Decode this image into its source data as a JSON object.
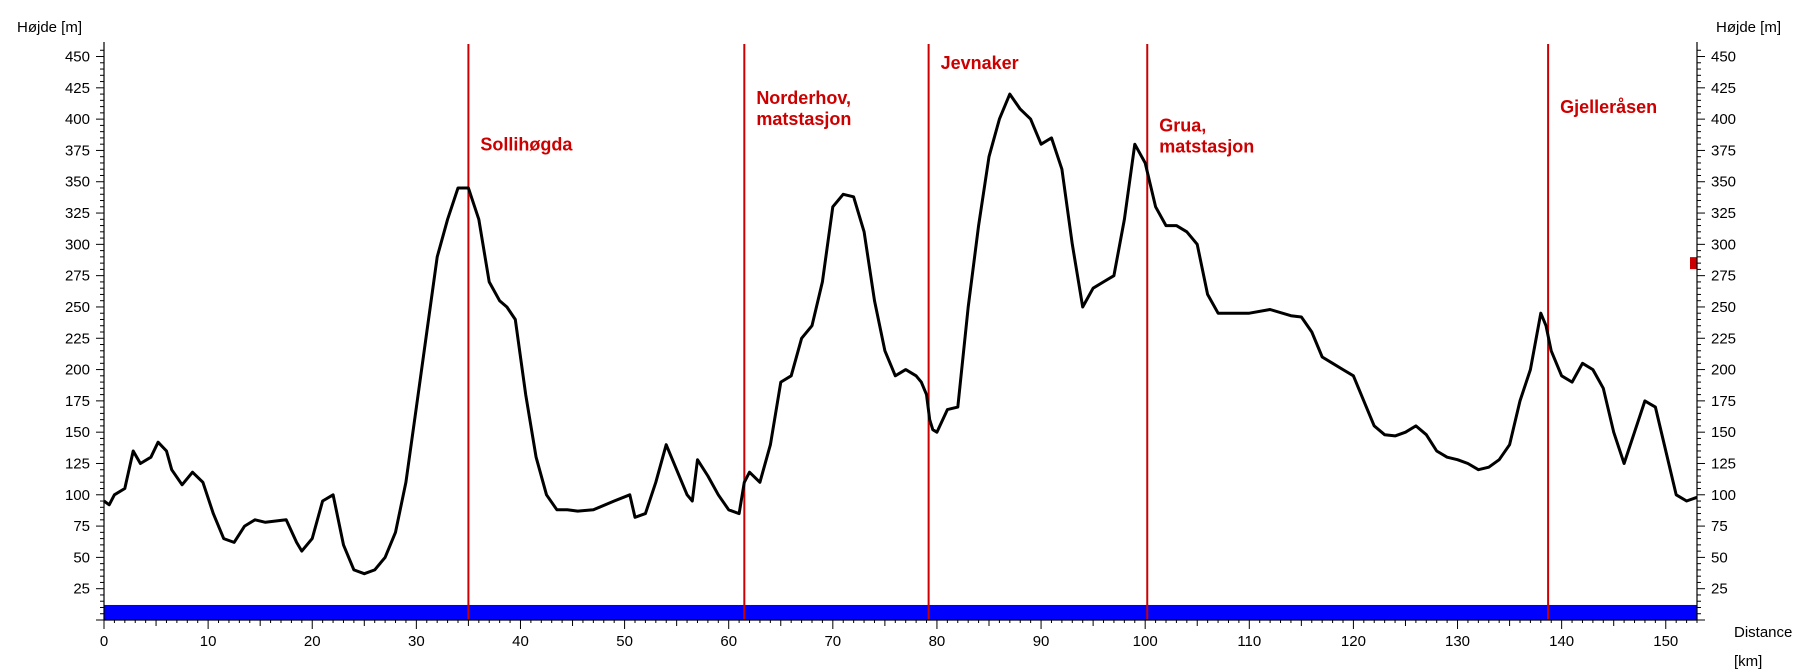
{
  "chart_data": {
    "type": "line",
    "ylabel_left": "Højde [m]",
    "ylabel_right": "Højde [m]",
    "xlabel_line1": "Distance",
    "xlabel_line2": "[km]",
    "xlim": [
      0,
      153
    ],
    "ylim": [
      0,
      460
    ],
    "x_ticks": [
      0,
      10,
      20,
      30,
      40,
      50,
      60,
      70,
      80,
      90,
      100,
      110,
      120,
      130,
      140,
      150
    ],
    "y_ticks": [
      25,
      50,
      75,
      100,
      125,
      150,
      175,
      200,
      225,
      250,
      275,
      300,
      325,
      350,
      375,
      400,
      425,
      450
    ],
    "grid": false,
    "colors": {
      "line": "#000000",
      "marker": "#cc0000",
      "baseline": "#0000ff"
    },
    "series": [
      {
        "x": [
          0,
          0.5,
          1,
          2,
          2.8,
          3.5,
          4.5,
          5.2,
          6,
          6.5,
          7.5,
          8.5,
          9.5,
          10.5,
          11.5,
          12.5,
          13.5,
          14.5,
          15.5,
          17.5,
          18.5,
          19,
          20,
          21,
          22,
          23,
          24,
          25,
          26,
          27,
          28,
          29,
          30,
          31,
          32,
          33,
          34,
          35,
          36,
          37,
          38,
          38.7,
          39.5,
          40.5,
          41.5,
          42.5,
          43.5,
          44.5,
          45.5,
          47,
          49,
          50.5,
          51,
          52,
          53,
          54,
          55,
          56,
          56.5,
          57,
          58,
          59,
          60,
          61,
          61.5,
          62,
          63,
          64,
          65,
          66,
          67,
          68,
          69,
          70,
          71,
          72,
          73,
          74,
          75,
          76,
          77,
          78,
          78.5,
          79,
          79.3,
          79.6,
          80,
          81,
          82,
          83,
          84,
          85,
          86,
          87,
          88,
          89,
          90,
          91,
          92,
          93,
          94,
          95,
          96,
          97,
          98,
          99,
          100,
          101,
          102,
          103,
          104,
          105,
          106,
          107,
          108,
          110,
          112,
          114,
          115,
          116,
          117,
          118,
          119,
          120,
          121,
          122,
          123,
          124,
          125,
          126,
          127,
          128,
          129,
          130,
          131,
          132,
          133,
          134,
          135,
          136,
          137,
          138,
          138.5,
          139,
          140,
          141,
          142,
          143,
          144,
          145,
          146,
          147,
          148,
          149,
          150,
          151,
          152,
          153
        ],
        "y": [
          95,
          92,
          100,
          105,
          135,
          125,
          130,
          142,
          135,
          120,
          108,
          118,
          110,
          85,
          65,
          62,
          75,
          80,
          78,
          80,
          62,
          55,
          65,
          95,
          100,
          60,
          40,
          37,
          40,
          50,
          70,
          110,
          170,
          230,
          290,
          320,
          345,
          345,
          320,
          270,
          255,
          250,
          240,
          180,
          130,
          100,
          88,
          88,
          87,
          88,
          95,
          100,
          82,
          85,
          110,
          140,
          120,
          100,
          95,
          128,
          115,
          100,
          88,
          85,
          110,
          118,
          110,
          140,
          190,
          195,
          225,
          235,
          270,
          330,
          340,
          338,
          310,
          255,
          215,
          195,
          200,
          195,
          190,
          180,
          160,
          152,
          150,
          168,
          170,
          250,
          315,
          370,
          400,
          420,
          408,
          400,
          380,
          385,
          360,
          300,
          250,
          265,
          270,
          275,
          320,
          380,
          365,
          330,
          315,
          315,
          310,
          300,
          260,
          245,
          245,
          245,
          248,
          243,
          242,
          230,
          210,
          205,
          200,
          195,
          175,
          155,
          148,
          147,
          150,
          155,
          148,
          135,
          130,
          128,
          125,
          120,
          122,
          128,
          140,
          175,
          200,
          245,
          235,
          215,
          195,
          190,
          205,
          200,
          185,
          150,
          125,
          150,
          175,
          170,
          135,
          100,
          95,
          98
        ]
      }
    ],
    "markers": [
      {
        "x": 35,
        "label_lines": [
          "Sollihøgda"
        ],
        "label_y": 375
      },
      {
        "x": 61.5,
        "label_lines": [
          "Norderhov,",
          "matstasjon"
        ],
        "label_y": 412
      },
      {
        "x": 79.2,
        "label_lines": [
          "Jevnaker"
        ],
        "label_y": 440
      },
      {
        "x": 100.2,
        "label_lines": [
          "Grua,",
          "matstasjon"
        ],
        "label_y": 390
      },
      {
        "x": 138.7,
        "label_lines": [
          "Gjelleråsen"
        ],
        "label_y": 405
      }
    ],
    "baseline_y": [
      0,
      12
    ],
    "side_mark": {
      "y": 285
    }
  }
}
